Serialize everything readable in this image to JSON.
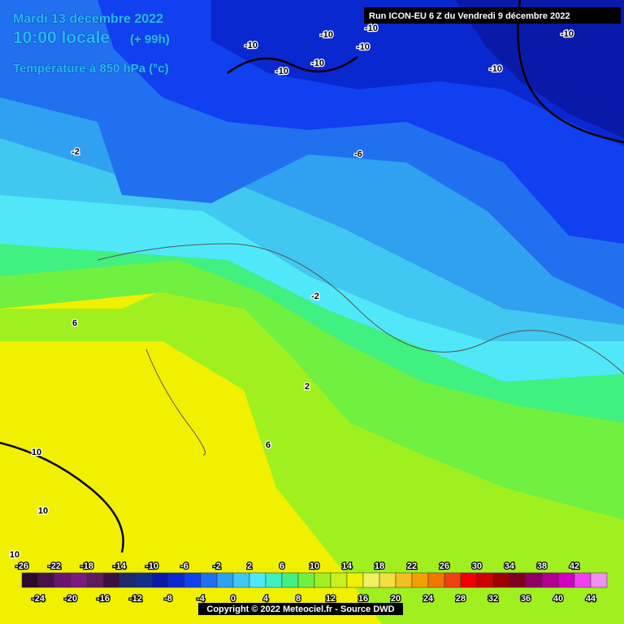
{
  "header": {
    "date": "Mardi 13 décembre 2022",
    "time": "10:00 locale",
    "lead": "(+ 99h)",
    "parameter": "Température à 850 hPa (°c)",
    "run": "Run ICON-EU 6 Z du Vendredi 9 décembre 2022"
  },
  "contour_labels": [
    -10,
    -10,
    -10,
    -10,
    -10,
    -10,
    -10,
    -10,
    -6,
    -2,
    -2,
    2,
    6,
    6,
    10,
    10,
    10
  ],
  "legend": {
    "top_labels": [
      -26,
      -22,
      -18,
      -14,
      -10,
      -6,
      -2,
      2,
      6,
      10,
      14,
      18,
      22,
      26,
      30,
      34,
      38,
      42
    ],
    "bottom_labels": [
      -24,
      -20,
      -16,
      -12,
      -8,
      -4,
      0,
      4,
      8,
      12,
      16,
      20,
      24,
      28,
      32,
      36,
      40,
      44
    ],
    "min": -26,
    "step": 2,
    "colors": [
      "#2b0a2e",
      "#4a0f4a",
      "#6a1470",
      "#7d1a80",
      "#5e1a5e",
      "#3a1040",
      "#1a2a6a",
      "#10308a",
      "#0a1aa8",
      "#0a28d0",
      "#1040f0",
      "#2070f0",
      "#30a0f0",
      "#40c8f0",
      "#50e8f8",
      "#40f0c0",
      "#40f080",
      "#70f040",
      "#a0f020",
      "#c8f020",
      "#f0f000",
      "#f0f060",
      "#f0e040",
      "#f0c020",
      "#f0a000",
      "#f07800",
      "#f04010",
      "#f00000",
      "#d00000",
      "#a00000",
      "#800020",
      "#900060",
      "#b00090",
      "#d000c0",
      "#f040f0",
      "#f090f0"
    ]
  },
  "footer": {
    "copyright": "Copyright © 2022 Meteociel.fr - Source DWD"
  }
}
